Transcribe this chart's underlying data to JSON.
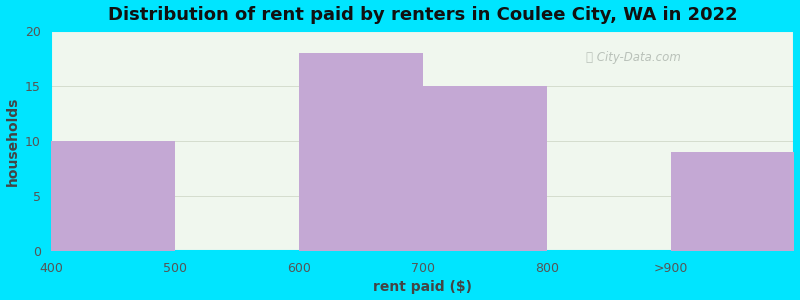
{
  "title": "Distribution of rent paid by renters in Coulee City, WA in 2022",
  "xlabel": "rent paid ($)",
  "ylabel": "households",
  "bar_color": "#c4a8d4",
  "background_outer": "#00e5ff",
  "background_inner_gradient_top": "#f5faf0",
  "background_inner": "#f0f7ee",
  "categories": [
    "400",
    "500",
    "600",
    "700",
    "800",
    ">900"
  ],
  "tick_positions": [
    1,
    2,
    3,
    4,
    5,
    6
  ],
  "bar_centers": [
    1.5,
    2.5,
    3.5,
    4.5,
    5.5,
    6.5
  ],
  "values": [
    10,
    0,
    18,
    15,
    0,
    9
  ],
  "ylim": [
    0,
    20
  ],
  "yticks": [
    0,
    5,
    10,
    15,
    20
  ],
  "bar_width": 1.0,
  "title_fontsize": 13,
  "axis_label_fontsize": 10,
  "tick_fontsize": 9,
  "watermark_text": "City-Data.com"
}
